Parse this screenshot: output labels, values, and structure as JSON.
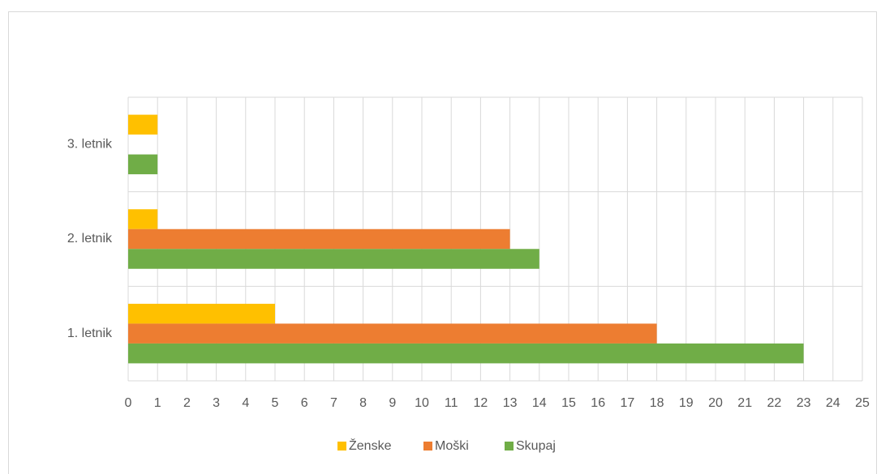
{
  "chart_data": {
    "type": "bar",
    "orientation": "horizontal",
    "categories": [
      "1. letnik",
      "2. letnik",
      "3. letnik"
    ],
    "series": [
      {
        "name": "Ženske",
        "color": "#FFC000",
        "values": [
          5,
          1,
          1
        ]
      },
      {
        "name": "Moški",
        "color": "#ED7D31",
        "values": [
          18,
          13,
          0
        ]
      },
      {
        "name": "Skupaj",
        "color": "#70AD47",
        "values": [
          23,
          14,
          1
        ]
      }
    ],
    "xlim": [
      0,
      25
    ],
    "xticks": [
      0,
      1,
      2,
      3,
      4,
      5,
      6,
      7,
      8,
      9,
      10,
      11,
      12,
      13,
      14,
      15,
      16,
      17,
      18,
      19,
      20,
      21,
      22,
      23,
      24,
      25
    ],
    "grid": true,
    "legend": "bottom"
  }
}
